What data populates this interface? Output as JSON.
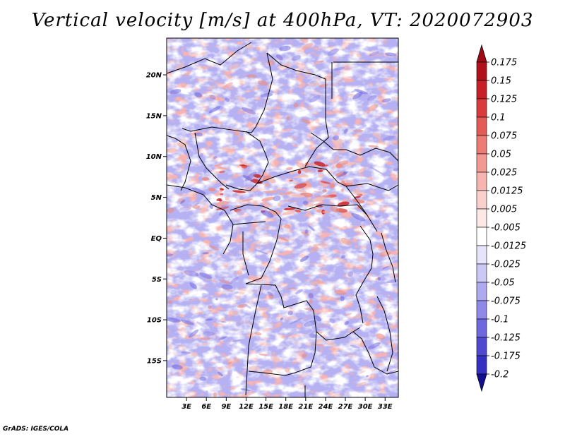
{
  "title": "Vertical velocity [m/s] at 400hPa, VT: 2020072903",
  "credit": "GrADS: IGES/COLA",
  "map": {
    "lat_range": [
      -19.5,
      24.5
    ],
    "lon_range": [
      0,
      35
    ],
    "lat_ticks": [
      {
        "value": 20,
        "label": "20N"
      },
      {
        "value": 15,
        "label": "15N"
      },
      {
        "value": 10,
        "label": "10N"
      },
      {
        "value": 5,
        "label": "5N"
      },
      {
        "value": 0,
        "label": "EQ"
      },
      {
        "value": -5,
        "label": "5S"
      },
      {
        "value": -10,
        "label": "10S"
      },
      {
        "value": -15,
        "label": "15S"
      }
    ],
    "lon_ticks": [
      {
        "value": 3,
        "label": "3E"
      },
      {
        "value": 6,
        "label": "6E"
      },
      {
        "value": 9,
        "label": "9E"
      },
      {
        "value": 12,
        "label": "12E"
      },
      {
        "value": 15,
        "label": "15E"
      },
      {
        "value": 18,
        "label": "18E"
      },
      {
        "value": 21,
        "label": "21E"
      },
      {
        "value": 24,
        "label": "24E"
      },
      {
        "value": 27,
        "label": "27E"
      },
      {
        "value": 30,
        "label": "30E"
      },
      {
        "value": 33,
        "label": "33E"
      }
    ]
  },
  "colorbar": {
    "levels": [
      {
        "label": "0.175",
        "color": "#b0101a"
      },
      {
        "label": "0.15",
        "color": "#c81f26"
      },
      {
        "label": "0.125",
        "color": "#d93a3c"
      },
      {
        "label": "0.1",
        "color": "#e45a55"
      },
      {
        "label": "0.075",
        "color": "#ec7c74"
      },
      {
        "label": "0.05",
        "color": "#f29a92"
      },
      {
        "label": "0.025",
        "color": "#f6b6af"
      },
      {
        "label": "0.0125",
        "color": "#f9d0cb"
      },
      {
        "label": "0.005",
        "color": "#fce8e5"
      },
      {
        "label": "-0.005",
        "color": "#ffffff"
      },
      {
        "label": "-0.0125",
        "color": "#e6e4fb"
      },
      {
        "label": "-0.025",
        "color": "#cbc8f6"
      },
      {
        "label": "-0.05",
        "color": "#aeaaf0"
      },
      {
        "label": "-0.075",
        "color": "#8f89e8"
      },
      {
        "label": "-0.1",
        "color": "#6e68de"
      },
      {
        "label": "-0.125",
        "color": "#4f49d2"
      },
      {
        "label": "-0.175",
        "color": "#3530c2"
      },
      {
        "label": "-0.2",
        "color": "#1f1aa8"
      }
    ],
    "top_color": "#a00a14",
    "bottom_color": "#140f90"
  }
}
